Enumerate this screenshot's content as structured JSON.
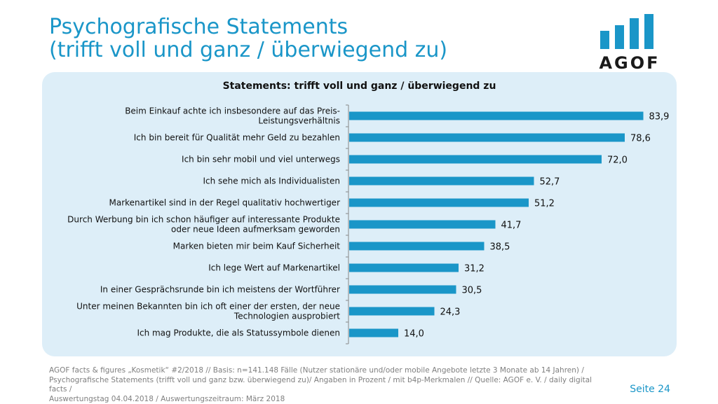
{
  "header": {
    "title_line1": "Psychografische Statements",
    "title_line2": "(trifft voll und ganz / überwiegend zu)"
  },
  "logo": {
    "text": "AGOF",
    "icon": "bar-chart-logo-icon",
    "color": "#1a96c8"
  },
  "chart_data": {
    "type": "bar",
    "orientation": "horizontal",
    "title": "Statements: trifft voll und ganz / überwiegend zu",
    "bar_color": "#1a96c8",
    "xlim": [
      0,
      100
    ],
    "grid": false,
    "categories": [
      [
        "Beim Einkauf achte ich insbesondere auf das Preis-",
        "Leistungsverhältnis"
      ],
      [
        "Ich bin bereit für Qualität mehr Geld zu bezahlen"
      ],
      [
        "Ich bin sehr mobil und viel unterwegs"
      ],
      [
        "Ich sehe mich als Individualisten"
      ],
      [
        "Markenartikel sind in der Regel qualitativ hochwertiger"
      ],
      [
        "Durch Werbung bin ich schon häufiger auf interessante Produkte",
        "oder neue Ideen aufmerksam geworden"
      ],
      [
        "Marken bieten mir beim Kauf Sicherheit"
      ],
      [
        "Ich lege Wert auf Markenartikel"
      ],
      [
        "In einer Gesprächsrunde bin ich meistens der Wortführer"
      ],
      [
        "Unter meinen Bekannten bin ich oft einer der ersten, der neue",
        "Technologien ausprobiert"
      ],
      [
        "Ich mag Produkte, die als Statussymbole dienen"
      ]
    ],
    "values": [
      83.9,
      78.6,
      72.0,
      52.7,
      51.2,
      41.7,
      38.5,
      31.2,
      30.5,
      24.3,
      14.0
    ],
    "value_labels": [
      "83,9",
      "78,6",
      "72,0",
      "52,7",
      "51,2",
      "41,7",
      "38,5",
      "31,2",
      "30,5",
      "24,3",
      "14,0"
    ]
  },
  "footer": {
    "line1": "AGOF facts & figures „Kosmetik“ #2/2018 // Basis: n=141.148 Fälle (Nutzer stationäre und/oder mobile Angebote letzte 3 Monate ab 14 Jahren) /",
    "line2": "Psychografische Statements (trifft voll und ganz bzw. überwiegend zu)/ Angaben in Prozent / mit b4p-Merkmalen // Quelle: AGOF e. V. / daily digital facts /",
    "line3": "Auswertungstag 04.04.2018 / Auswertungszeitraum: März 2018"
  },
  "page_label": "Seite 24"
}
